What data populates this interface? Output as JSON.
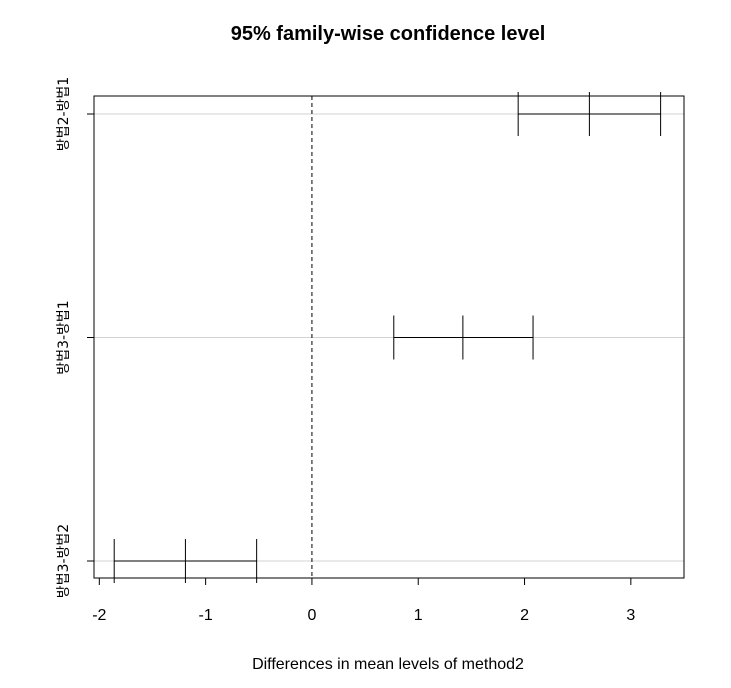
{
  "chart_data": {
    "type": "interval",
    "title": "95% family-wise confidence level",
    "xlabel": "Differences in mean levels of method2",
    "ylabel": "",
    "xlim": [
      -2.05,
      3.5
    ],
    "xticks": [
      -2,
      -1,
      0,
      1,
      2,
      3
    ],
    "xtick_labels": [
      "-2",
      "-1",
      "0",
      "1",
      "2",
      "3"
    ],
    "reference_line": 0,
    "categories": [
      "방법2-방법1",
      "방법3-방법1",
      "방법3-방법2"
    ],
    "series": [
      {
        "name": "방법2-방법1",
        "lwr": 1.94,
        "diff": 2.61,
        "upr": 3.28
      },
      {
        "name": "방법3-방법1",
        "lwr": 0.77,
        "diff": 1.42,
        "upr": 2.08
      },
      {
        "name": "방법3-방법2",
        "lwr": -1.86,
        "diff": -1.19,
        "upr": -0.52
      }
    ]
  }
}
